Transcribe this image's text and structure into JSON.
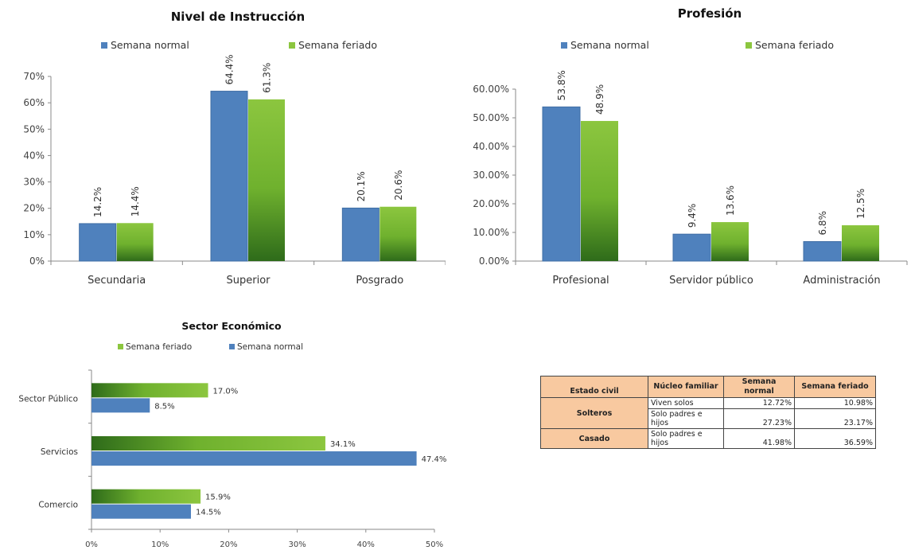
{
  "colors": {
    "normal": "#4f81bd",
    "feriado": "#8cc63f",
    "feriado_dark": "#2e6b1a",
    "axis": "#8a8a8a",
    "grid": "#d9d9d9"
  },
  "chart_data": [
    {
      "id": "instruccion",
      "type": "bar",
      "title": "Nivel de Instrucción",
      "categories": [
        "Secundaria",
        "Superior",
        "Posgrado"
      ],
      "series": [
        {
          "name": "Semana normal",
          "values": [
            14.2,
            64.4,
            20.1
          ],
          "labels": [
            "14.2%",
            "64.4%",
            "20.1%"
          ]
        },
        {
          "name": "Semana feriado",
          "values": [
            14.4,
            61.3,
            20.6
          ],
          "labels": [
            "14.4%",
            "61.3%",
            "20.6%"
          ]
        }
      ],
      "ylim": [
        0,
        70
      ],
      "yticks": [
        "0%",
        "10%",
        "20%",
        "30%",
        "40%",
        "50%",
        "60%",
        "70%"
      ],
      "legend": "top",
      "grid": false
    },
    {
      "id": "profesion",
      "type": "bar",
      "title": "Profesión",
      "categories": [
        "Profesional",
        "Servidor público",
        "Administración"
      ],
      "series": [
        {
          "name": "Semana normal",
          "values": [
            53.8,
            9.4,
            6.8
          ],
          "labels": [
            "53.8%",
            "9.4%",
            "6.8%"
          ]
        },
        {
          "name": "Semana feriado",
          "values": [
            48.9,
            13.6,
            12.5
          ],
          "labels": [
            "48.9%",
            "13.6%",
            "12.5%"
          ]
        }
      ],
      "ylim": [
        0,
        60
      ],
      "yticks": [
        "0.00%",
        "10.00%",
        "20.00%",
        "30.00%",
        "40.00%",
        "50.00%",
        "60.00%"
      ],
      "legend": "top",
      "grid": false
    },
    {
      "id": "sector",
      "type": "bar",
      "orientation": "horizontal",
      "title": "Sector Económico",
      "categories": [
        "Sector Público",
        "Servicios",
        "Comercio"
      ],
      "series": [
        {
          "name": "Semana feriado",
          "values": [
            17.0,
            34.1,
            15.9
          ],
          "labels": [
            "17.0%",
            "34.1%",
            "15.9%"
          ]
        },
        {
          "name": "Semana normal",
          "values": [
            8.5,
            47.4,
            14.5
          ],
          "labels": [
            "8.5%",
            "47.4%",
            "14.5%"
          ]
        }
      ],
      "xlim": [
        0,
        50
      ],
      "xticks": [
        "0%",
        "10%",
        "20%",
        "30%",
        "40%",
        "50%"
      ],
      "legend": "top",
      "grid": false
    }
  ],
  "table": {
    "headers": [
      "Estado civil",
      "Núcleo familiar",
      "Semana normal",
      "Semana feriado"
    ],
    "groups": [
      {
        "label": "Solteros",
        "rows": [
          {
            "nucleo": "Viven solos",
            "normal": "12.72%",
            "feriado": "10.98%"
          },
          {
            "nucleo": "Solo padres e hijos",
            "normal": "27.23%",
            "feriado": "23.17%"
          }
        ]
      },
      {
        "label": "Casado",
        "rows": [
          {
            "nucleo": "Solo padres e hijos",
            "normal": "41.98%",
            "feriado": "36.59%"
          }
        ]
      }
    ]
  }
}
